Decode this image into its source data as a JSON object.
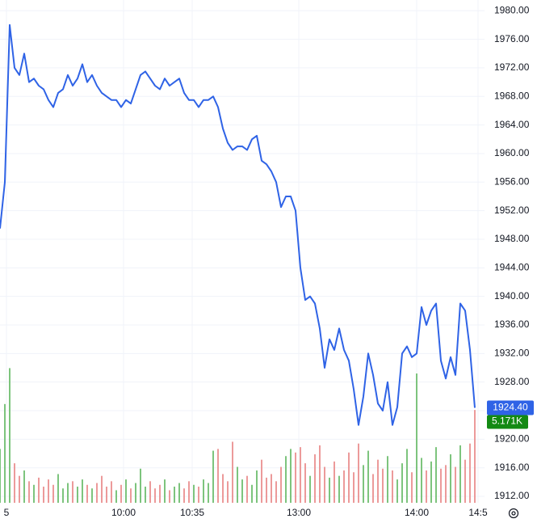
{
  "chart_data": {
    "type": "line",
    "xlim": [
      0,
      100
    ],
    "ylim": [
      1911.1,
      1981.5
    ],
    "grid": true,
    "xticks": [
      {
        "value": 1.33,
        "label": "5"
      },
      {
        "value": 25.5,
        "label": "10:00"
      },
      {
        "value": 39.67,
        "label": "10:35"
      },
      {
        "value": 61.67,
        "label": "13:00"
      },
      {
        "value": 86,
        "label": "14:00"
      },
      {
        "value": 98.67,
        "label": "14:5"
      }
    ],
    "yticks": [
      {
        "value": 1912,
        "label": "1912.00"
      },
      {
        "value": 1916,
        "label": "1916.00"
      },
      {
        "value": 1920,
        "label": "1920.00"
      },
      {
        "value": 1924,
        "label": "1924.00"
      },
      {
        "value": 1928,
        "label": "1928.00"
      },
      {
        "value": 1932,
        "label": "1932.00"
      },
      {
        "value": 1936,
        "label": "1936.00"
      },
      {
        "value": 1940,
        "label": "1940.00"
      },
      {
        "value": 1944,
        "label": "1944.00"
      },
      {
        "value": 1948,
        "label": "1948.00"
      },
      {
        "value": 1952,
        "label": "1952.00"
      },
      {
        "value": 1956,
        "label": "1956.00"
      },
      {
        "value": 1960,
        "label": "1960.00"
      },
      {
        "value": 1964,
        "label": "1964.00"
      },
      {
        "value": 1968,
        "label": "1968.00"
      },
      {
        "value": 1972,
        "label": "1972.00"
      },
      {
        "value": 1976,
        "label": "1976.00"
      },
      {
        "value": 1980,
        "label": "1980.00"
      }
    ],
    "series": [
      {
        "color": "#2f63e6",
        "values": [
          1949.5,
          1956,
          1978,
          1972,
          1971,
          1974,
          1970,
          1970.5,
          1969.5,
          1969,
          1967.5,
          1966.5,
          1968.5,
          1969,
          1971,
          1969.5,
          1970.5,
          1972.5,
          1970,
          1971,
          1969.5,
          1968.5,
          1968,
          1967.5,
          1967.5,
          1966.5,
          1967.5,
          1967,
          1969,
          1971,
          1971.5,
          1970.5,
          1969.5,
          1969,
          1970.5,
          1969.5,
          1970,
          1970.5,
          1968.5,
          1967.5,
          1967.5,
          1966.5,
          1967.5,
          1967.5,
          1968,
          1966.5,
          1963.5,
          1961.5,
          1960.5,
          1961,
          1961,
          1960.5,
          1962,
          1962.5,
          1959,
          1958.5,
          1957.5,
          1956,
          1952.5,
          1954,
          1954,
          1952,
          1944,
          1939.5,
          1940,
          1939,
          1935.5,
          1930,
          1934,
          1932.5,
          1935.5,
          1932.5,
          1931,
          1927,
          1922,
          1926,
          1932,
          1929,
          1925,
          1924,
          1928,
          1922,
          1924.5,
          1932,
          1933,
          1931.5,
          1932,
          1938.5,
          1936,
          1938,
          1939,
          1931,
          1928.5,
          1931.5,
          1929,
          1939,
          1938,
          1932.5,
          1924.4
        ],
        "value_labels": [
          null,
          null,
          null,
          null,
          null,
          null,
          null,
          null,
          null,
          null,
          null,
          null,
          null,
          null,
          null,
          null,
          null,
          null,
          null,
          null,
          null,
          null,
          null,
          null,
          null,
          null,
          null,
          null,
          null,
          null,
          null,
          null,
          null,
          null,
          null,
          null,
          null,
          null,
          null,
          null,
          null,
          null,
          null,
          null,
          null,
          null,
          null,
          null,
          null,
          null,
          null,
          null,
          null,
          null,
          null,
          null,
          null,
          null,
          null,
          null,
          null,
          null,
          null,
          null,
          null,
          null,
          null,
          null,
          null,
          null,
          null,
          null,
          null,
          null,
          null,
          null,
          null,
          null,
          null,
          null,
          null,
          null,
          null,
          null,
          null,
          null,
          null,
          null,
          null,
          null,
          null,
          null,
          null,
          null,
          null,
          null,
          null,
          null,
          "1924.40"
        ]
      }
    ],
    "volume": {
      "up_color": "#7dc47d",
      "down_color": "#ec9a9a",
      "label_color": "#138a13",
      "vlim": [
        0,
        28
      ],
      "values": [
        3.0,
        5.5,
        7.5,
        2.2,
        1.5,
        1.8,
        1.2,
        1.0,
        1.4,
        0.9,
        1.3,
        1.0,
        1.6,
        0.8,
        1.1,
        1.2,
        0.9,
        1.3,
        1.0,
        0.8,
        1.1,
        1.5,
        0.9,
        1.2,
        0.7,
        1.0,
        1.3,
        0.8,
        1.1,
        1.9,
        0.9,
        1.2,
        0.8,
        1.0,
        1.3,
        0.7,
        0.9,
        1.1,
        0.8,
        1.2,
        1.0,
        0.9,
        1.3,
        1.1,
        2.9,
        3.0,
        1.6,
        1.2,
        3.4,
        2.0,
        1.3,
        1.5,
        1.0,
        1.8,
        2.4,
        1.4,
        1.6,
        1.2,
        2.0,
        2.6,
        3.0,
        2.8,
        3.1,
        2.2,
        1.5,
        2.7,
        3.2,
        2.0,
        1.4,
        2.3,
        1.5,
        1.8,
        2.8,
        1.7,
        3.3,
        2.1,
        2.9,
        1.6,
        2.4,
        1.9,
        2.6,
        1.8,
        1.3,
        2.2,
        3.0,
        1.7,
        7.2,
        2.5,
        1.8,
        2.3,
        3.1,
        1.9,
        2.1,
        2.7,
        2.0,
        3.2,
        2.4,
        3.3,
        5.171
      ],
      "value_labels": [
        null,
        null,
        null,
        null,
        null,
        null,
        null,
        null,
        null,
        null,
        null,
        null,
        null,
        null,
        null,
        null,
        null,
        null,
        null,
        null,
        null,
        null,
        null,
        null,
        null,
        null,
        null,
        null,
        null,
        null,
        null,
        null,
        null,
        null,
        null,
        null,
        null,
        null,
        null,
        null,
        null,
        null,
        null,
        null,
        null,
        null,
        null,
        null,
        null,
        null,
        null,
        null,
        null,
        null,
        null,
        null,
        null,
        null,
        null,
        null,
        null,
        null,
        null,
        null,
        null,
        null,
        null,
        null,
        null,
        null,
        null,
        null,
        null,
        null,
        null,
        null,
        null,
        null,
        null,
        null,
        null,
        null,
        null,
        null,
        null,
        null,
        null,
        null,
        null,
        null,
        null,
        null,
        null,
        null,
        null,
        null,
        null,
        null,
        "5.171K"
      ]
    }
  }
}
